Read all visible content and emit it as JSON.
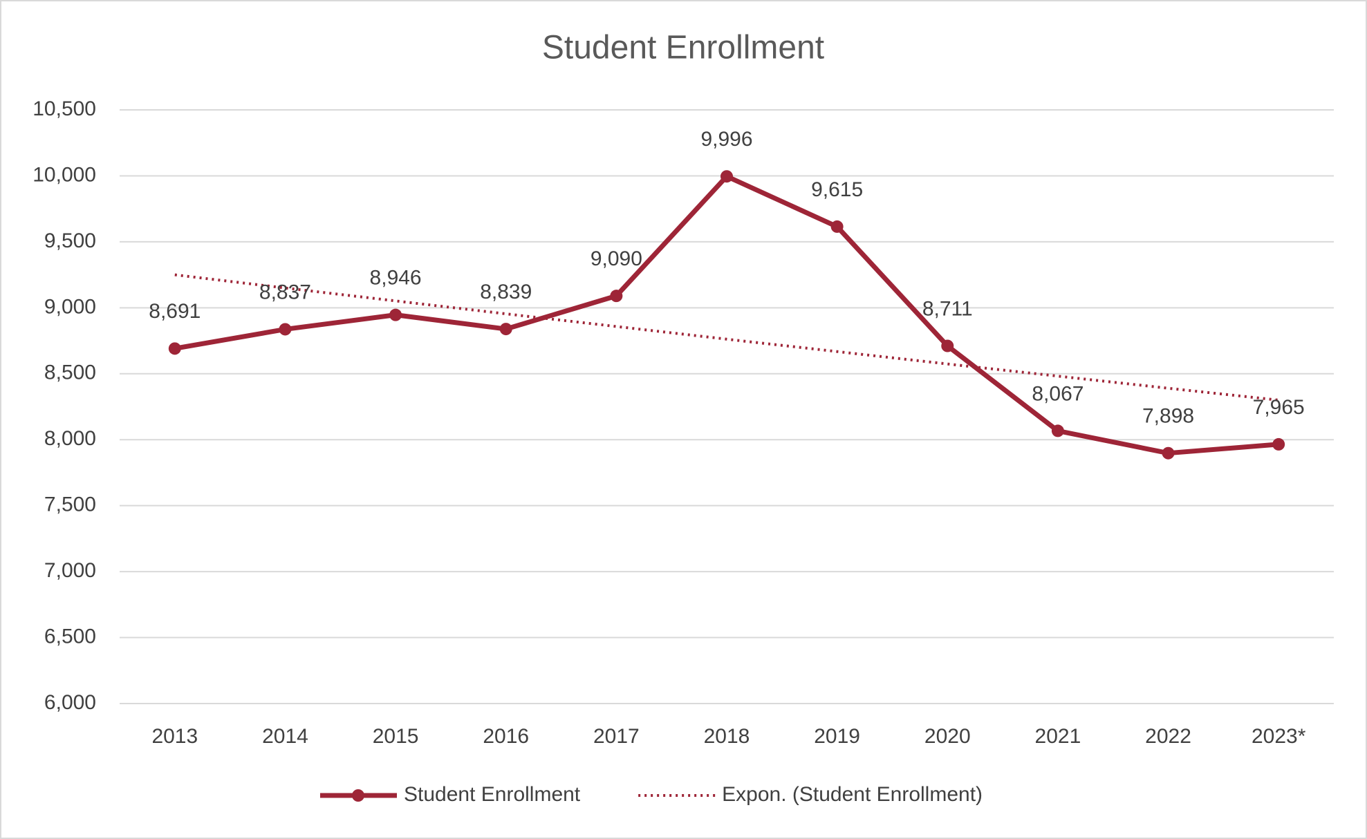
{
  "chart_data": {
    "type": "line",
    "title": "Student Enrollment",
    "categories": [
      "2013",
      "2014",
      "2015",
      "2016",
      "2017",
      "2018",
      "2019",
      "2020",
      "2021",
      "2022",
      "2023*"
    ],
    "series": [
      {
        "name": "Student Enrollment",
        "color": "#9e2537",
        "values": [
          8691,
          8837,
          8946,
          8839,
          9090,
          9996,
          9615,
          8711,
          8067,
          7898,
          7965
        ],
        "value_labels": [
          "8,691",
          "8,837",
          "8,946",
          "8,839",
          "9,090",
          "9,996",
          "9,615",
          "8,711",
          "8,067",
          "7,898",
          "7,965"
        ]
      },
      {
        "name": "Expon. (Student Enrollment)",
        "color": "#9e2537",
        "dash": "dotted",
        "values": [
          9250,
          9150,
          9052,
          8954,
          8858,
          8762,
          8668,
          8574,
          8482,
          8390,
          8300
        ]
      }
    ],
    "ylim": [
      6000,
      10500
    ],
    "yticks": [
      {
        "value": 6000,
        "label": "6,000"
      },
      {
        "value": 6500,
        "label": "6,500"
      },
      {
        "value": 7000,
        "label": "7,000"
      },
      {
        "value": 7500,
        "label": "7,500"
      },
      {
        "value": 8000,
        "label": "8,000"
      },
      {
        "value": 8500,
        "label": "8,500"
      },
      {
        "value": 9000,
        "label": "9,000"
      },
      {
        "value": 9500,
        "label": "9,500"
      },
      {
        "value": 10000,
        "label": "10,000"
      },
      {
        "value": 10500,
        "label": "10,500"
      }
    ],
    "grid": true,
    "legend": "bottom"
  }
}
